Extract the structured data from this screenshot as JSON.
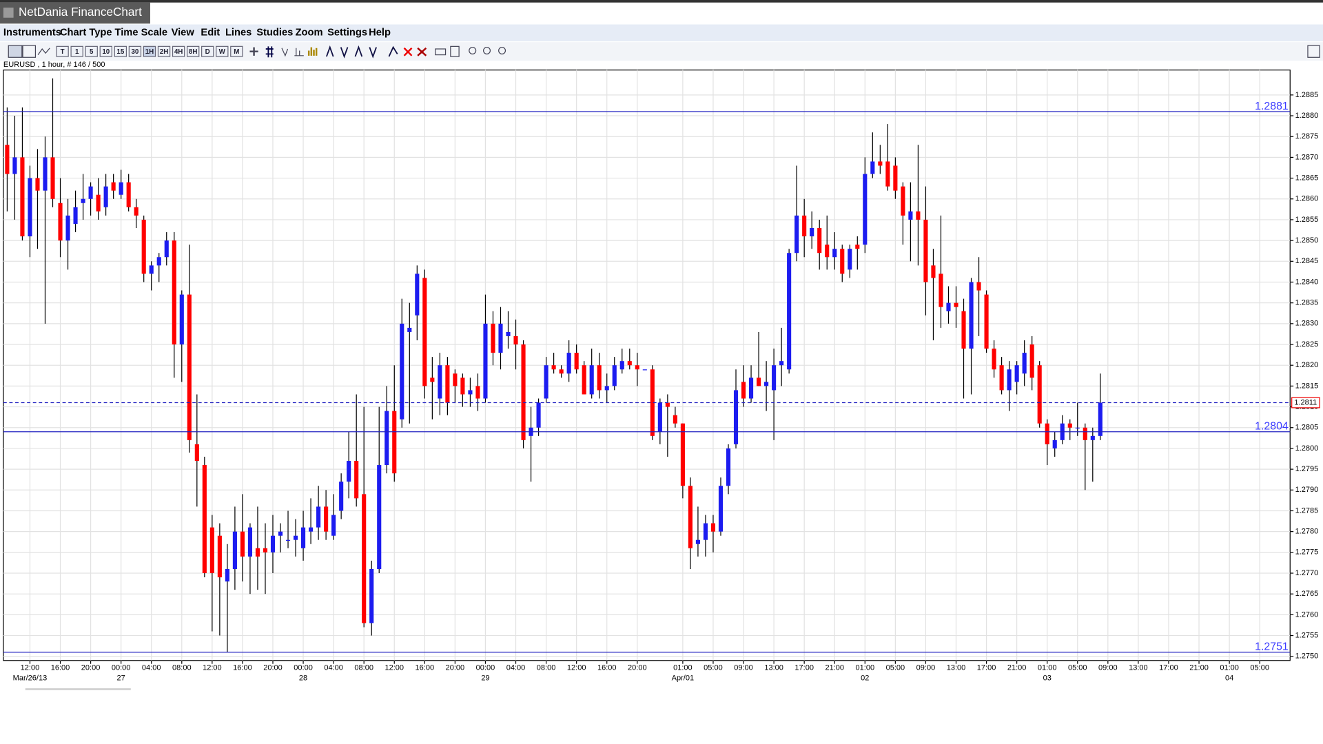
{
  "window_title": "NetDania FinanceChart",
  "menu": [
    "Instruments",
    "Chart Type",
    "Time Scale",
    "View",
    "Edit",
    "Lines",
    "Studies",
    "Zoom",
    "Settings",
    "Help"
  ],
  "toolbar": {
    "buttons": [
      "T",
      "1",
      "5",
      "10",
      "15",
      "30",
      "1H",
      "2H",
      "4H",
      "8H",
      "D",
      "W",
      "M"
    ]
  },
  "chart_data": {
    "type": "candlestick",
    "title": "EURUSD , 1 hour, # 146 / 500",
    "open": [
      1.2873,
      1.2866,
      1.287,
      1.2851,
      1.2865,
      1.2862,
      1.287,
      1.2859,
      1.285,
      1.2854,
      1.2859,
      1.286,
      1.2861,
      1.2858,
      1.2864,
      1.2861,
      1.2864,
      1.2858,
      1.2855,
      1.2842,
      1.2844,
      1.2846,
      1.285,
      1.2825,
      1.2837,
      1.2801,
      1.2796,
      1.2781,
      1.2779,
      1.2768,
      1.2771,
      1.278,
      1.2774,
      1.2776,
      1.2776,
      1.2775,
      1.2779,
      1.2778,
      1.2778,
      1.2776,
      1.278,
      1.2781,
      1.2786,
      1.2779,
      1.2785,
      1.2792,
      1.2797,
      1.2789,
      1.2758,
      1.2771,
      1.2796,
      1.2809,
      1.2807,
      1.2828,
      1.2832,
      1.2841,
      1.2817,
      1.2812,
      1.282,
      1.2818,
      1.2817,
      1.2813,
      1.2815,
      1.2812,
      1.283,
      1.2823,
      1.2827,
      1.2827,
      1.2825,
      1.2803,
      1.2805,
      1.2812,
      1.282,
      1.2819,
      1.2818,
      1.2823,
      1.282,
      1.2813,
      1.282,
      1.2814,
      1.2815,
      1.2819,
      1.2821,
      1.282,
      1.2819,
      1.2819,
      1.2804,
      1.2811,
      1.2808,
      1.2806,
      1.2791,
      1.2777,
      1.2778,
      1.2782,
      1.278,
      1.2791,
      1.2801,
      1.2816,
      1.2812,
      1.2817,
      1.2815,
      1.2814,
      1.282,
      1.2819,
      1.2847,
      1.2856,
      1.2851,
      1.2853,
      1.2849,
      1.2846,
      1.2848,
      1.2843,
      1.2849,
      1.2849,
      1.2866,
      1.2869,
      1.2869,
      1.2868,
      1.2863,
      1.2855,
      1.2857,
      1.2855,
      1.2844,
      1.2842,
      1.2833,
      1.2835,
      1.2833,
      1.2824,
      1.284,
      1.2837,
      1.2824,
      1.282,
      1.2814,
      1.2816,
      1.2818,
      1.2825,
      1.282,
      1.2806,
      1.28,
      1.2802,
      1.2806,
      1.2805,
      1.2805,
      1.2802,
      1.2803
    ],
    "high": [
      1.2882,
      1.288,
      1.2882,
      1.2868,
      1.2872,
      1.2875,
      1.2889,
      1.2865,
      1.286,
      1.2862,
      1.2866,
      1.2864,
      1.2865,
      1.2866,
      1.2866,
      1.2867,
      1.2866,
      1.286,
      1.2856,
      1.2845,
      1.2847,
      1.2852,
      1.2852,
      1.2838,
      1.2849,
      1.2813,
      1.2798,
      1.2784,
      1.2782,
      1.2777,
      1.2786,
      1.2789,
      1.2782,
      1.2786,
      1.2782,
      1.2784,
      1.2782,
      1.2785,
      1.2783,
      1.2785,
      1.2788,
      1.2791,
      1.279,
      1.2789,
      1.2794,
      1.2804,
      1.2813,
      1.281,
      1.2773,
      1.281,
      1.2815,
      1.282,
      1.2836,
      1.2835,
      1.2844,
      1.2843,
      1.2822,
      1.2823,
      1.2822,
      1.2819,
      1.2818,
      1.2817,
      1.2818,
      1.2837,
      1.2833,
      1.2834,
      1.2833,
      1.2831,
      1.2826,
      1.281,
      1.2812,
      1.2822,
      1.2823,
      1.282,
      1.2826,
      1.2825,
      1.2821,
      1.2824,
      1.2823,
      1.2818,
      1.2822,
      1.2824,
      1.2824,
      1.2823,
      1.2819,
      1.282,
      1.2812,
      1.2813,
      1.281,
      1.2806,
      1.2793,
      1.2786,
      1.2784,
      1.2784,
      1.2793,
      1.2801,
      1.2819,
      1.282,
      1.282,
      1.2828,
      1.2821,
      1.2824,
      1.2829,
      1.2848,
      1.2868,
      1.286,
      1.2857,
      1.2855,
      1.2856,
      1.2852,
      1.2849,
      1.2849,
      1.2851,
      1.287,
      1.2876,
      1.2873,
      1.2878,
      1.287,
      1.2864,
      1.2864,
      1.2873,
      1.2863,
      1.2848,
      1.2856,
      1.2839,
      1.2839,
      1.2836,
      1.2841,
      1.2846,
      1.2838,
      1.2826,
      1.2822,
      1.2821,
      1.2821,
      1.2826,
      1.2827,
      1.2821,
      1.2807,
      1.2804,
      1.2808,
      1.2807,
      1.2811,
      1.2806,
      1.2805,
      1.2818
    ],
    "low": [
      1.2857,
      1.2855,
      1.285,
      1.2846,
      1.2848,
      1.283,
      1.2858,
      1.2846,
      1.2843,
      1.2852,
      1.2855,
      1.2856,
      1.2855,
      1.2856,
      1.286,
      1.286,
      1.2857,
      1.2853,
      1.284,
      1.2838,
      1.284,
      1.2844,
      1.2817,
      1.2816,
      1.2799,
      1.2786,
      1.2769,
      1.2756,
      1.2755,
      1.2751,
      1.2766,
      1.2768,
      1.2765,
      1.2766,
      1.2765,
      1.277,
      1.2775,
      1.2776,
      1.2774,
      1.2773,
      1.2777,
      1.2778,
      1.2778,
      1.2778,
      1.2783,
      1.2788,
      1.2786,
      1.2757,
      1.2755,
      1.277,
      1.2794,
      1.2792,
      1.2805,
      1.2806,
      1.2826,
      1.2812,
      1.2807,
      1.2808,
      1.2808,
      1.2811,
      1.281,
      1.281,
      1.2809,
      1.2811,
      1.282,
      1.2819,
      1.2824,
      1.2819,
      1.28,
      1.2792,
      1.2803,
      1.2811,
      1.2818,
      1.2817,
      1.2816,
      1.2818,
      1.2813,
      1.2812,
      1.2812,
      1.2811,
      1.2814,
      1.2818,
      1.2819,
      1.2815,
      1.2819,
      1.2802,
      1.2801,
      1.2798,
      1.2805,
      1.2788,
      1.2771,
      1.2774,
      1.2774,
      1.2775,
      1.2779,
      1.2789,
      1.28,
      1.281,
      1.2811,
      1.2815,
      1.2809,
      1.2802,
      1.2815,
      1.2818,
      1.2845,
      1.2846,
      1.2848,
      1.2843,
      1.2843,
      1.2843,
      1.284,
      1.2841,
      1.2843,
      1.2847,
      1.2865,
      1.2866,
      1.2862,
      1.286,
      1.2849,
      1.2845,
      1.2844,
      1.2832,
      1.2826,
      1.2829,
      1.283,
      1.2829,
      1.2812,
      1.2813,
      1.2827,
      1.2823,
      1.2817,
      1.2813,
      1.2809,
      1.2813,
      1.2815,
      1.2814,
      1.2805,
      1.2796,
      1.2798,
      1.2801,
      1.2802,
      1.2803,
      1.279,
      1.2792,
      1.2802
    ],
    "close": [
      1.2866,
      1.287,
      1.2851,
      1.2865,
      1.2862,
      1.287,
      1.286,
      1.285,
      1.2856,
      1.2858,
      1.286,
      1.2863,
      1.2857,
      1.2863,
      1.2862,
      1.2864,
      1.2858,
      1.2856,
      1.2842,
      1.2844,
      1.2846,
      1.285,
      1.2825,
      1.2837,
      1.2802,
      1.2797,
      1.277,
      1.277,
      1.2769,
      1.2771,
      1.278,
      1.2774,
      1.2781,
      1.2774,
      1.2775,
      1.2779,
      1.278,
      1.2778,
      1.2779,
      1.2781,
      1.2781,
      1.2786,
      1.278,
      1.2784,
      1.2792,
      1.2797,
      1.2788,
      1.2758,
      1.2771,
      1.2796,
      1.2809,
      1.2794,
      1.283,
      1.2829,
      1.2842,
      1.2815,
      1.2816,
      1.282,
      1.2811,
      1.2815,
      1.2813,
      1.2814,
      1.2812,
      1.283,
      1.2823,
      1.283,
      1.2828,
      1.2825,
      1.2802,
      1.2805,
      1.2811,
      1.282,
      1.2819,
      1.2818,
      1.2823,
      1.2819,
      1.2813,
      1.282,
      1.2814,
      1.2815,
      1.282,
      1.2821,
      1.282,
      1.2819,
      1.2819,
      1.2803,
      1.2811,
      1.281,
      1.2806,
      1.2791,
      1.2776,
      1.2778,
      1.2782,
      1.278,
      1.2791,
      1.28,
      1.2814,
      1.2812,
      1.2817,
      1.2815,
      1.2816,
      1.282,
      1.2821,
      1.2847,
      1.2856,
      1.2851,
      1.2853,
      1.2847,
      1.2846,
      1.2848,
      1.2842,
      1.2848,
      1.2848,
      1.2866,
      1.2869,
      1.2868,
      1.2863,
      1.2862,
      1.2856,
      1.2857,
      1.2855,
      1.284,
      1.2841,
      1.2834,
      1.2835,
      1.2834,
      1.2824,
      1.284,
      1.2838,
      1.2824,
      1.2819,
      1.2814,
      1.2819,
      1.282,
      1.2823,
      1.2817,
      1.2806,
      1.2801,
      1.2802,
      1.2806,
      1.2805,
      1.2805,
      1.2802,
      1.2803,
      1.2811
    ],
    "up_color": "#1c1cf0",
    "down_color": "#ff0000",
    "wick_color": "#000000",
    "xlim": [
      -0.5,
      169
    ],
    "xticks": [
      {
        "value": 3,
        "label": "12:00"
      },
      {
        "value": 7,
        "label": "16:00"
      },
      {
        "value": 11,
        "label": "20:00"
      },
      {
        "value": 15,
        "label": "00:00"
      },
      {
        "value": 19,
        "label": "04:00"
      },
      {
        "value": 23,
        "label": "08:00"
      },
      {
        "value": 27,
        "label": "12:00"
      },
      {
        "value": 31,
        "label": "16:00"
      },
      {
        "value": 35,
        "label": "20:00"
      },
      {
        "value": 39,
        "label": "00:00"
      },
      {
        "value": 43,
        "label": "04:00"
      },
      {
        "value": 47,
        "label": "08:00"
      },
      {
        "value": 51,
        "label": "12:00"
      },
      {
        "value": 55,
        "label": "16:00"
      },
      {
        "value": 59,
        "label": "20:00"
      },
      {
        "value": 63,
        "label": "00:00"
      },
      {
        "value": 67,
        "label": "04:00"
      },
      {
        "value": 71,
        "label": "08:00"
      },
      {
        "value": 75,
        "label": "12:00"
      },
      {
        "value": 79,
        "label": "16:00"
      },
      {
        "value": 83,
        "label": "20:00"
      },
      {
        "value": 89,
        "label": "01:00"
      },
      {
        "value": 93,
        "label": "05:00"
      },
      {
        "value": 97,
        "label": "09:00"
      },
      {
        "value": 101,
        "label": "13:00"
      },
      {
        "value": 105,
        "label": "17:00"
      },
      {
        "value": 109,
        "label": "21:00"
      },
      {
        "value": 113,
        "label": "01:00"
      },
      {
        "value": 117,
        "label": "05:00"
      },
      {
        "value": 121,
        "label": "09:00"
      },
      {
        "value": 125,
        "label": "13:00"
      },
      {
        "value": 129,
        "label": "17:00"
      },
      {
        "value": 133,
        "label": "21:00"
      },
      {
        "value": 137,
        "label": "01:00"
      },
      {
        "value": 141,
        "label": "05:00"
      },
      {
        "value": 145,
        "label": "09:00"
      },
      {
        "value": 149,
        "label": "13:00"
      },
      {
        "value": 153,
        "label": "17:00"
      },
      {
        "value": 157,
        "label": "21:00"
      },
      {
        "value": 161,
        "label": "01:00"
      },
      {
        "value": 165,
        "label": "05:00"
      }
    ],
    "date_ticks": [
      {
        "value": 3,
        "label": "Mar/26/13"
      },
      {
        "value": 15,
        "label": "27"
      },
      {
        "value": 39,
        "label": "28"
      },
      {
        "value": 63,
        "label": "29"
      },
      {
        "value": 89,
        "label": "Apr/01"
      },
      {
        "value": 113,
        "label": "02"
      },
      {
        "value": 137,
        "label": "03"
      },
      {
        "value": 161,
        "label": "04"
      }
    ],
    "ylim": [
      1.2749,
      1.2891
    ],
    "yticks": [
      {
        "value": 1.275,
        "label": "1.2750"
      },
      1.2755,
      {
        "value": 1.276,
        "label": "1.2760"
      },
      1.2765,
      {
        "value": 1.277,
        "label": "1.2770"
      },
      1.2775,
      {
        "value": 1.278,
        "label": "1.2780"
      },
      1.2785,
      {
        "value": 1.279,
        "label": "1.2790"
      },
      1.2795,
      {
        "value": 1.28,
        "label": "1.2800"
      },
      1.2805,
      {
        "value": 1.281,
        "label": "1.2810"
      },
      1.2815,
      {
        "value": 1.282,
        "label": "1.2820"
      },
      1.2825,
      {
        "value": 1.283,
        "label": "1.2830"
      },
      1.2835,
      {
        "value": 1.284,
        "label": "1.2840"
      },
      1.2845,
      {
        "value": 1.285,
        "label": "1.2850"
      },
      1.2855,
      {
        "value": 1.286,
        "label": "1.2860"
      },
      1.2865,
      {
        "value": 1.287,
        "label": "1.2870"
      },
      1.2875,
      {
        "value": 1.288,
        "label": "1.2880"
      },
      1.2885
    ],
    "grid": true,
    "lines": [
      1.2881,
      1.2804,
      1.2751
    ],
    "line_color": "#2020c0",
    "last_price": 1.2811
  }
}
